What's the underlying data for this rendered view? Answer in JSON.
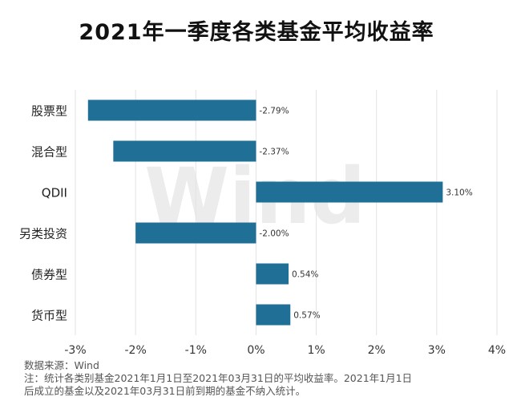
{
  "chart_data": {
    "type": "bar",
    "orientation": "horizontal",
    "title": "2021年一季度各类基金平均收益率",
    "categories": [
      "股票型",
      "混合型",
      "QDII",
      "另类投资",
      "债券型",
      "货币型"
    ],
    "values": [
      -2.79,
      -2.37,
      3.1,
      -2.0,
      0.54,
      0.57
    ],
    "data_labels": [
      "-2.79%",
      "-2.37%",
      "3.10%",
      "-2.00%",
      "0.54%",
      "0.57%"
    ],
    "xlim": [
      -3,
      4
    ],
    "x_ticks": [
      -3,
      -2,
      -1,
      0,
      1,
      2,
      3,
      4
    ],
    "x_tick_labels": [
      "-3%",
      "-2%",
      "-1%",
      "0%",
      "1%",
      "2%",
      "3%",
      "4%"
    ],
    "xlabel": "",
    "ylabel": "",
    "grid": "vertical",
    "legend": "none",
    "bar_color": "#1f6f96",
    "watermark": "Wind"
  },
  "footnotes": {
    "source": "数据来源：Wind",
    "note_line_1": "注：统计各类别基金2021年1月1日至2021年03月31日的平均收益率。2021年1月1日",
    "note_line_2": "后成立的基金以及2021年03月31日前到期的基金不纳入统计。"
  }
}
